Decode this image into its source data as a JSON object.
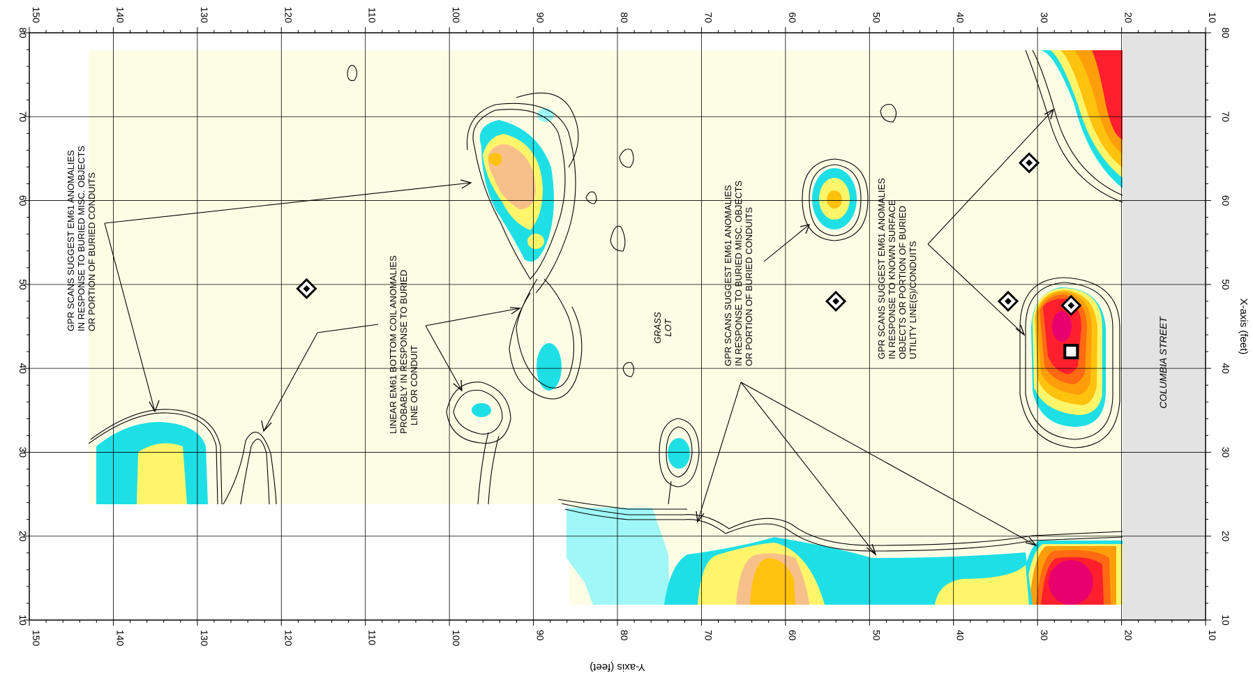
{
  "colors": {
    "background_fill": "#fdfde6",
    "street_fill": "#e3e3e3",
    "c1": "#9ff7f7",
    "c2": "#1fdfe6",
    "c3": "#fff56b",
    "c4": "#f7c08a",
    "c5": "#ffc20e",
    "c6": "#ff9e0b",
    "c7": "#ff6a12",
    "c8": "#ff1f2d",
    "c9": "#e8006e",
    "grid": "#000000"
  },
  "chart_data": {
    "type": "contour",
    "xlabel": "X-axis (feet)",
    "ylabel": "Y-axis (feet)",
    "x_range": [
      10,
      80
    ],
    "y_range": [
      150,
      10
    ],
    "x_ticks": [
      10,
      20,
      30,
      40,
      50,
      60,
      70,
      80
    ],
    "y_ticks": [
      150,
      140,
      130,
      120,
      110,
      100,
      90,
      80,
      70,
      60,
      50,
      40,
      30,
      20,
      10
    ],
    "street_label": "COLUMBIA STREET",
    "grass_label": [
      "GRASS",
      "LOT"
    ],
    "annotations": [
      {
        "lines": [
          "GPR SCANS SUGGEST EM61 ANOMALIES",
          "IN RESPONSE TO BURIED MISC. OBJECTS",
          "OR PORTION OF BURIED CONDUITS"
        ]
      },
      {
        "lines": [
          "LINEAR EM61 BOTTOM COIL ANOMALIES",
          "PROBABLY IN RESPONSE TO BURIED",
          "LINE OR CONDUIT"
        ]
      },
      {
        "lines": [
          "GPR SCANS SUGGEST EM61 ANOMALIES",
          "IN RESPONSE TO BURIED MISC. OBJECTS",
          "OR PORTION OF BURIED CONDUITS"
        ]
      },
      {
        "lines": [
          "GPR SCANS SUGGEST EM61 ANOMALIES",
          "IN RESPONSE TO KNOWN SURFACE",
          "OBJECTS OR PORTION OF BURIED",
          "UTILITY LINE(S)/CONDUITS"
        ]
      }
    ],
    "markers": [
      {
        "shape": "diamond",
        "x": 49.5,
        "y": 117
      },
      {
        "shape": "diamond",
        "x": 48,
        "y": 54
      },
      {
        "shape": "diamond",
        "x": 64.5,
        "y": 31
      },
      {
        "shape": "diamond",
        "x": 48,
        "y": 33.5
      },
      {
        "shape": "diamond",
        "x": 47.5,
        "y": 26
      },
      {
        "shape": "square",
        "x": 42,
        "y": 26
      }
    ],
    "anomalies": [
      {
        "x": 30,
        "y": 134,
        "levels": [
          "c2",
          "c3"
        ]
      },
      {
        "x": 62,
        "y": 92,
        "levels": [
          "c2",
          "c3",
          "c4",
          "c5"
        ]
      },
      {
        "x": 40,
        "y": 88,
        "levels": [
          "c2"
        ]
      },
      {
        "x": 34,
        "y": 96,
        "levels": [
          "c2"
        ]
      },
      {
        "x": 30,
        "y": 73,
        "levels": [
          "c2"
        ]
      },
      {
        "x": 60,
        "y": 54,
        "levels": [
          "c2",
          "c3",
          "c5"
        ]
      },
      {
        "x": 44,
        "y": 26,
        "levels": [
          "c2",
          "c3",
          "c5",
          "c6",
          "c7",
          "c8",
          "c9"
        ]
      },
      {
        "x": 72,
        "y": 22,
        "levels": [
          "c3",
          "c5",
          "c7",
          "c8"
        ]
      },
      {
        "x": 15,
        "y": 26,
        "levels": [
          "c2",
          "c3",
          "c5",
          "c6",
          "c7",
          "c8",
          "c9"
        ]
      },
      {
        "x": 14,
        "y": 60,
        "levels": [
          "c2",
          "c3",
          "c4",
          "c5"
        ]
      }
    ]
  }
}
